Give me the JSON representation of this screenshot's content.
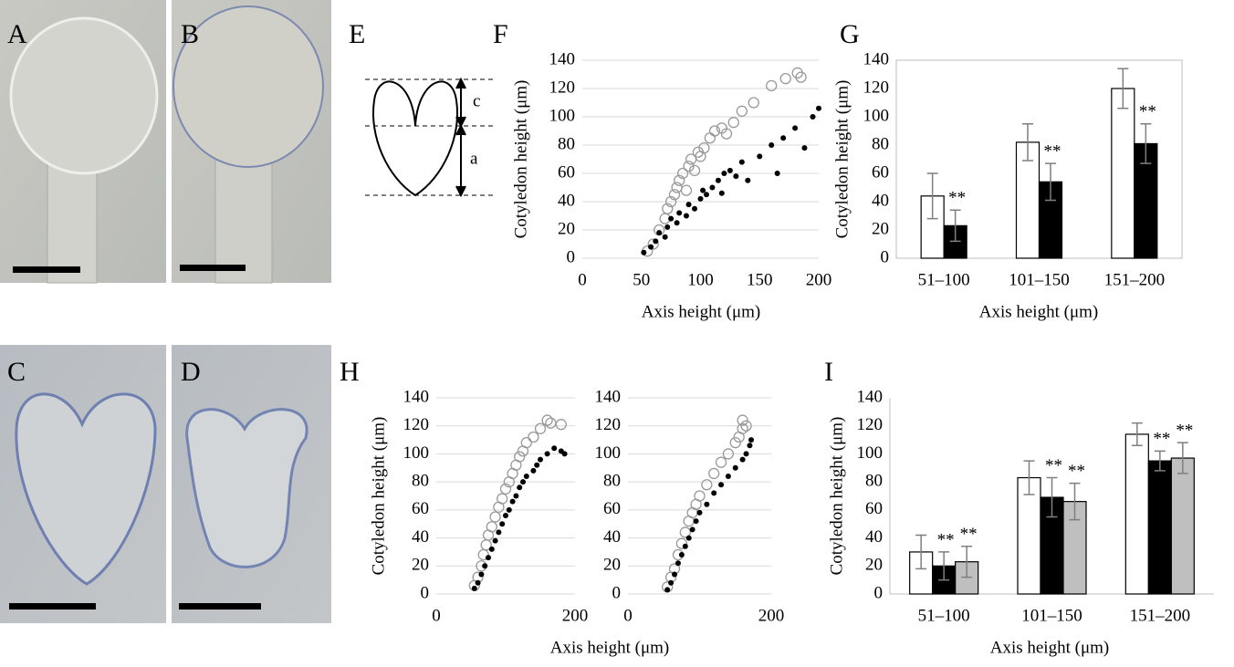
{
  "panel_labels": [
    "A",
    "B",
    "C",
    "D",
    "E",
    "F",
    "G",
    "H",
    "I"
  ],
  "diagram": {
    "labels": [
      "c",
      "a"
    ]
  },
  "chart_data": [
    {
      "type": "scatter",
      "ylabel": "Cotyledon height (μm)",
      "xlabel": "Axis height (μm)",
      "xlim": [
        0,
        200
      ],
      "ylim": [
        0,
        140
      ],
      "xticks": [
        0,
        50,
        100,
        150,
        200
      ],
      "yticks": [
        0,
        20,
        40,
        60,
        80,
        100,
        120,
        140
      ],
      "grid": true,
      "series": [
        {
          "color": "#999999",
          "marker": "open",
          "x": [
            55,
            60,
            65,
            70,
            72,
            75,
            78,
            80,
            82,
            85,
            88,
            90,
            92,
            95,
            98,
            100,
            103,
            108,
            112,
            118,
            122,
            128,
            135,
            145,
            160,
            172,
            182,
            185
          ],
          "values": [
            5,
            10,
            20,
            28,
            35,
            40,
            45,
            50,
            55,
            60,
            48,
            65,
            70,
            62,
            75,
            72,
            78,
            85,
            90,
            92,
            88,
            96,
            104,
            110,
            122,
            127,
            131,
            128
          ]
        },
        {
          "color": "#000000",
          "marker": "filled",
          "x": [
            52,
            58,
            62,
            65,
            70,
            72,
            75,
            80,
            82,
            88,
            90,
            95,
            100,
            102,
            105,
            110,
            115,
            118,
            120,
            125,
            130,
            135,
            140,
            150,
            160,
            165,
            170,
            180,
            188,
            195,
            200
          ],
          "values": [
            4,
            8,
            12,
            18,
            15,
            22,
            28,
            25,
            32,
            30,
            38,
            35,
            42,
            48,
            45,
            50,
            55,
            46,
            60,
            62,
            58,
            68,
            55,
            72,
            80,
            60,
            85,
            92,
            78,
            100,
            106
          ]
        }
      ]
    },
    {
      "type": "bar",
      "ylabel": "Cotyledon height (μm)",
      "xlabel": "Axis height (μm)",
      "categories": [
        "51–100",
        "101–150",
        "151–200"
      ],
      "ylim": [
        0,
        140
      ],
      "yticks": [
        0,
        20,
        40,
        60,
        80,
        100,
        120,
        140
      ],
      "frame": true,
      "series": [
        {
          "color": "#ffffff",
          "values": [
            44,
            82,
            120
          ],
          "errors": [
            16,
            13,
            14
          ]
        },
        {
          "color": "#000000",
          "values": [
            23,
            54,
            81
          ],
          "errors": [
            11,
            13,
            14
          ],
          "significance": [
            "**",
            "**",
            "**"
          ]
        }
      ]
    },
    {
      "type": "scatter",
      "ylabel": "Cotyledon height (μm)",
      "xlim": [
        0,
        200
      ],
      "ylim": [
        0,
        140
      ],
      "xticks": [
        0,
        200
      ],
      "yticks": [
        0,
        20,
        40,
        60,
        80,
        100,
        120,
        140
      ],
      "grid": true,
      "series": [
        {
          "color": "#999999",
          "marker": "open",
          "x": [
            55,
            60,
            65,
            68,
            72,
            75,
            80,
            85,
            90,
            95,
            100,
            105,
            110,
            115,
            120,
            125,
            130,
            140,
            150,
            160,
            165,
            180
          ],
          "values": [
            6,
            12,
            20,
            28,
            35,
            42,
            48,
            55,
            62,
            68,
            75,
            80,
            86,
            92,
            98,
            102,
            108,
            112,
            118,
            124,
            122,
            121
          ]
        },
        {
          "color": "#000000",
          "marker": "filled",
          "x": [
            55,
            60,
            65,
            70,
            75,
            80,
            85,
            90,
            95,
            100,
            105,
            110,
            115,
            120,
            125,
            130,
            140,
            145,
            150,
            160,
            170,
            180,
            185
          ],
          "values": [
            4,
            8,
            14,
            20,
            26,
            32,
            38,
            44,
            50,
            56,
            60,
            66,
            70,
            76,
            80,
            84,
            88,
            92,
            96,
            100,
            104,
            102,
            100
          ]
        }
      ]
    },
    {
      "type": "scatter",
      "xlabel": "Axis height (μm)",
      "xlim": [
        0,
        200
      ],
      "ylim": [
        0,
        140
      ],
      "xticks": [
        0,
        200
      ],
      "yticks": [
        0,
        20,
        40,
        60,
        80,
        100,
        120,
        140
      ],
      "grid": true,
      "series": [
        {
          "color": "#999999",
          "marker": "open",
          "x": [
            55,
            60,
            65,
            70,
            75,
            80,
            85,
            90,
            95,
            100,
            110,
            120,
            130,
            140,
            150,
            155,
            160,
            160,
            165
          ],
          "values": [
            5,
            12,
            18,
            28,
            36,
            44,
            52,
            58,
            64,
            70,
            78,
            86,
            94,
            100,
            108,
            112,
            118,
            124,
            120
          ]
        },
        {
          "color": "#000000",
          "marker": "filled",
          "x": [
            55,
            60,
            65,
            70,
            75,
            80,
            85,
            90,
            95,
            100,
            110,
            120,
            130,
            140,
            150,
            160,
            165,
            170,
            172
          ],
          "values": [
            3,
            8,
            14,
            22,
            28,
            34,
            40,
            46,
            52,
            58,
            64,
            72,
            78,
            84,
            90,
            96,
            100,
            106,
            110
          ]
        }
      ]
    },
    {
      "type": "bar",
      "ylabel": "Cotyledon height (μm)",
      "xlabel": "Axis height (μm)",
      "categories": [
        "51–100",
        "101–150",
        "151–200"
      ],
      "ylim": [
        0,
        140
      ],
      "yticks": [
        0,
        20,
        40,
        60,
        80,
        100,
        120,
        140
      ],
      "frame": false,
      "series": [
        {
          "color": "#ffffff",
          "values": [
            30,
            83,
            114
          ],
          "errors": [
            12,
            12,
            8
          ]
        },
        {
          "color": "#000000",
          "values": [
            20,
            69,
            95
          ],
          "errors": [
            10,
            14,
            7
          ],
          "significance": [
            "**",
            "**",
            "**"
          ]
        },
        {
          "color": "#bfbfbf",
          "values": [
            23,
            66,
            97
          ],
          "errors": [
            11,
            13,
            11
          ],
          "significance": [
            "**",
            "**",
            "**"
          ]
        }
      ]
    }
  ]
}
